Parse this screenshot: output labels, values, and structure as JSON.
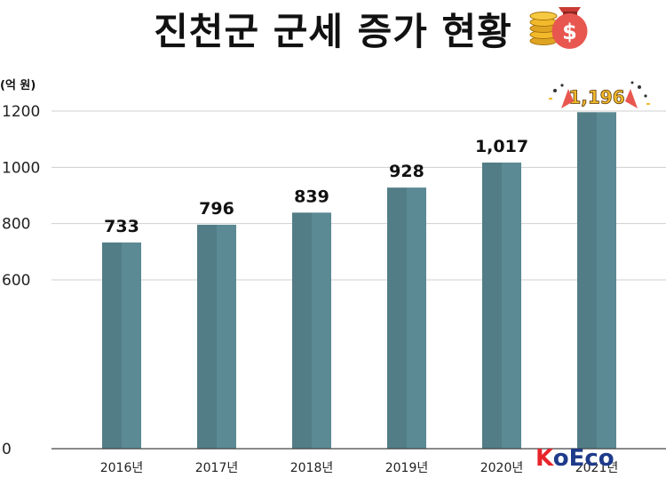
{
  "chart_data": {
    "type": "bar",
    "title": "진천군 군세 증가 현황",
    "ylabel": "(억 원)",
    "categories": [
      "2016년",
      "2017년",
      "2018년",
      "2019년",
      "2020년",
      "2021년"
    ],
    "values": [
      733,
      796,
      839,
      928,
      1017,
      1196
    ],
    "data_labels": [
      "733",
      "796",
      "839",
      "928",
      "1,017",
      "1,196"
    ],
    "ylim": [
      0,
      1200
    ],
    "yticks": [
      0,
      600,
      800,
      1000,
      1200
    ],
    "grid": true,
    "bar_color": "#5b8a94",
    "bar_shade_color": "#527d86",
    "highlight_index": 5
  },
  "logo": {
    "text_k": "K",
    "text_o": "o",
    "text_eco": "Eco",
    "color_k": "#e8232a",
    "color_rest": "#1e3a8a"
  },
  "icons": [
    "coin-stack-icon",
    "money-bag-icon",
    "party-popper-icon"
  ]
}
